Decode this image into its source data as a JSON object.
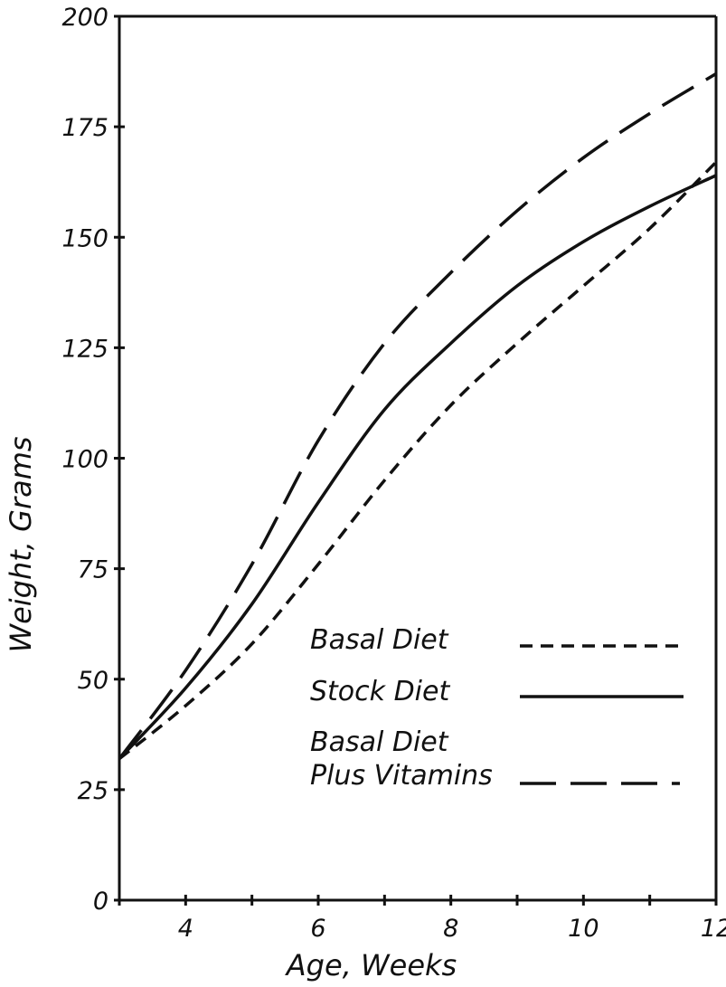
{
  "chart_data": {
    "type": "line",
    "title": "",
    "xlabel": "Age, Weeks",
    "ylabel": "Weight, Grams",
    "xlim": [
      3,
      12
    ],
    "ylim": [
      0,
      200
    ],
    "x_ticks": [
      4,
      6,
      8,
      10,
      12
    ],
    "y_ticks": [
      0,
      25,
      50,
      75,
      100,
      125,
      150,
      175,
      200
    ],
    "x_tick_labels": [
      "4",
      "6",
      "8",
      "10",
      "12"
    ],
    "y_tick_labels": [
      "0",
      "25",
      "50",
      "75",
      "100",
      "125",
      "150",
      "175",
      "200"
    ],
    "grid": false,
    "legend_position": "lower-right",
    "series": [
      {
        "name": "Basal Diet",
        "style": "short-dash",
        "x": [
          3,
          4,
          5,
          6,
          7,
          8,
          9,
          10,
          11,
          12
        ],
        "y": [
          32,
          44,
          58,
          76,
          95,
          112,
          126,
          139,
          152,
          167
        ]
      },
      {
        "name": "Stock Diet",
        "style": "solid",
        "x": [
          3,
          4,
          5,
          6,
          7,
          8,
          9,
          10,
          11,
          12
        ],
        "y": [
          32,
          48,
          67,
          90,
          111,
          126,
          139,
          149,
          157,
          164
        ]
      },
      {
        "name_lines": [
          "Basal Diet",
          "Plus Vitamins"
        ],
        "style": "long-dash",
        "x": [
          3,
          4,
          5,
          6,
          7,
          8,
          9,
          10,
          11,
          12
        ],
        "y": [
          32,
          52,
          76,
          104,
          126,
          142,
          156,
          168,
          178,
          187
        ]
      }
    ]
  }
}
